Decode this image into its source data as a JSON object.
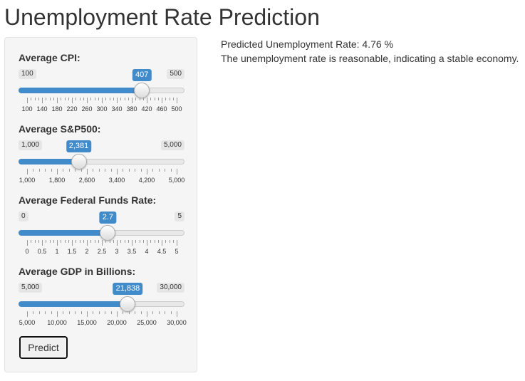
{
  "title": "Unemployment Rate Prediction",
  "sidebar": {
    "sliders": [
      {
        "id": "cpi",
        "label": "Average CPI:",
        "min": 100,
        "max": 500,
        "value": 407,
        "min_label": "100",
        "max_label": "500",
        "value_label": "407",
        "ticks": [
          "100",
          "140",
          "180",
          "220",
          "260",
          "300",
          "340",
          "380",
          "420",
          "460",
          "500"
        ]
      },
      {
        "id": "sp500",
        "label": "Average S&P500:",
        "min": 1000,
        "max": 5000,
        "value": 2381,
        "min_label": "1,000",
        "max_label": "5,000",
        "value_label": "2,381",
        "ticks": [
          "1,000",
          "1,800",
          "2,600",
          "3,400",
          "4,200",
          "5,000"
        ]
      },
      {
        "id": "fed-funds",
        "label": "Average Federal Funds Rate:",
        "min": 0,
        "max": 5,
        "value": 2.7,
        "min_label": "0",
        "max_label": "5",
        "value_label": "2.7",
        "ticks": [
          "0",
          "0.5",
          "1",
          "1.5",
          "2",
          "2.5",
          "3",
          "3.5",
          "4",
          "4.5",
          "5"
        ]
      },
      {
        "id": "gdp",
        "label": "Average GDP in Billions:",
        "min": 5000,
        "max": 30000,
        "value": 21838,
        "min_label": "5,000",
        "max_label": "30,000",
        "value_label": "21,838",
        "ticks": [
          "5,000",
          "10,000",
          "15,000",
          "20,000",
          "25,000",
          "30,000"
        ]
      }
    ],
    "predict_label": "Predict"
  },
  "result": {
    "prediction_text": "Predicted Unemployment Rate: 4.76 %",
    "assessment_text": "The unemployment rate is reasonable, indicating a stable economy."
  },
  "colors": {
    "accent": "#428bca",
    "panel": "#f5f5f5",
    "text": "#333333"
  }
}
